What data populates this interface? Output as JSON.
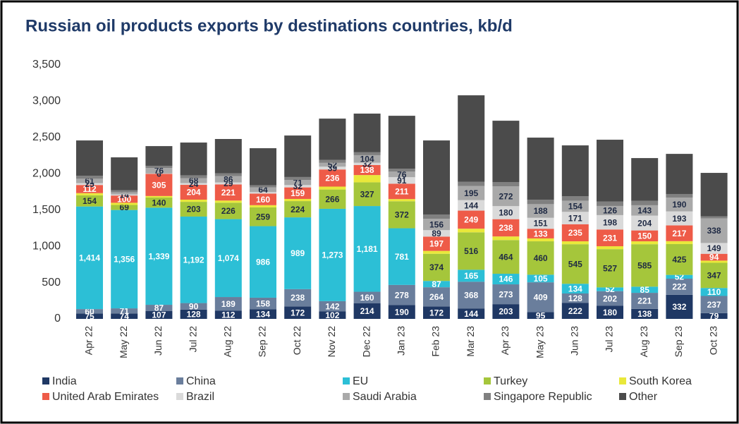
{
  "chart_data": {
    "type": "stacked_bar",
    "title": "Russian oil products exports by destinations countries, kb/d",
    "categories": [
      "Apr 22",
      "May 22",
      "Jun 22",
      "Jul 22",
      "Aug 22",
      "Sep 22",
      "Oct 22",
      "Nov 22",
      "Dec 22",
      "Jan 23",
      "Feb 23",
      "Mar 23",
      "Apr 23",
      "May 23",
      "Jun 23",
      "Jul 23",
      "Aug 23",
      "Sep 23",
      "Oct 23"
    ],
    "ylim": [
      0,
      3500
    ],
    "yticks": [
      0,
      500,
      {
        "value": 1000,
        "label": "1,000"
      },
      {
        "value": 1500,
        "label": "1,500"
      },
      {
        "value": 2000,
        "label": "2,000"
      },
      {
        "value": 2500,
        "label": "2,500"
      },
      {
        "value": 3000,
        "label": "3,000"
      },
      {
        "value": 3500,
        "label": "3,500"
      }
    ],
    "grid": false,
    "legend": "bottom",
    "series": [
      {
        "name": "India",
        "color": "#1f3864",
        "labels": true,
        "values": [
          75,
          74,
          107,
          128,
          112,
          134,
          172,
          102,
          214,
          190,
          172,
          144,
          203,
          95,
          222,
          180,
          138,
          332,
          79
        ]
      },
      {
        "name": "China",
        "color": "#6a7e9c",
        "labels": true,
        "values": [
          60,
          71,
          87,
          90,
          189,
          158,
          238,
          142,
          160,
          278,
          264,
          368,
          273,
          409,
          128,
          202,
          221,
          222,
          237
        ]
      },
      {
        "name": "EU",
        "color": "#2cbfd6",
        "values": [
          1414,
          1356,
          1339,
          1192,
          1074,
          986,
          989,
          1273,
          1181,
          781,
          87,
          165,
          146,
          105,
          134,
          52,
          85,
          52,
          110
        ],
        "value_labels": [
          "1,414",
          "1,356",
          "1,339",
          "1,192",
          "1,074",
          986,
          989,
          "1,273",
          "1,181",
          781,
          87,
          165,
          146,
          105,
          134,
          52,
          85,
          52,
          110
        ]
      },
      {
        "name": "Turkey",
        "color": "#a5c63b",
        "labels": true,
        "values": [
          154,
          69,
          140,
          203,
          226,
          259,
          224,
          266,
          327,
          372,
          374,
          516,
          464,
          460,
          545,
          527,
          585,
          425,
          347
        ]
      },
      {
        "name": "South Korea",
        "color": "#e9e83a",
        "values": [
          30,
          30,
          20,
          30,
          30,
          30,
          30,
          40,
          100,
          30,
          40,
          50,
          50,
          40,
          40,
          40,
          40,
          40,
          30
        ]
      },
      {
        "name": "United Arab Emirates",
        "color": "#ee5b48",
        "labels": true,
        "values": [
          112,
          100,
          305,
          204,
          221,
          160,
          159,
          236,
          138,
          211,
          197,
          249,
          238,
          133,
          235,
          231,
          150,
          217,
          94
        ]
      },
      {
        "name": "Brazil",
        "color": "#dadada",
        "values": [
          25,
          14,
          6,
          24,
          29,
          20,
          32,
          39,
          32,
          91,
          89,
          144,
          180,
          151,
          171,
          198,
          204,
          193,
          149
        ],
        "value_labels": [
          25,
          14,
          6,
          24,
          29,
          null,
          32,
          39,
          32,
          91,
          89,
          144,
          180,
          151,
          171,
          198,
          204,
          193,
          149
        ]
      },
      {
        "name": "Saudi Arabia",
        "color": "#a9a9a9",
        "values": [
          61,
          30,
          76,
          68,
          86,
          64,
          71,
          52,
          104,
          76,
          156,
          195,
          272,
          188,
          154,
          126,
          143,
          190,
          338
        ],
        "value_labels": [
          61,
          null,
          76,
          68,
          86,
          64,
          71,
          52,
          104,
          76,
          156,
          195,
          272,
          188,
          154,
          126,
          143,
          190,
          338
        ]
      },
      {
        "name": "Singapore Republic",
        "color": "#808080",
        "values": [
          40,
          30,
          30,
          40,
          40,
          30,
          40,
          40,
          40,
          40,
          60,
          60,
          60,
          60,
          60,
          60,
          60,
          50,
          30
        ]
      },
      {
        "name": "Other",
        "color": "#4b4b4b",
        "values": [
          488,
          452,
          271,
          451,
          472,
          511,
          572,
          570,
          533,
          730,
          1020,
          1190,
          845,
          857,
          702,
          853,
          590,
          553,
          598
        ]
      }
    ]
  }
}
